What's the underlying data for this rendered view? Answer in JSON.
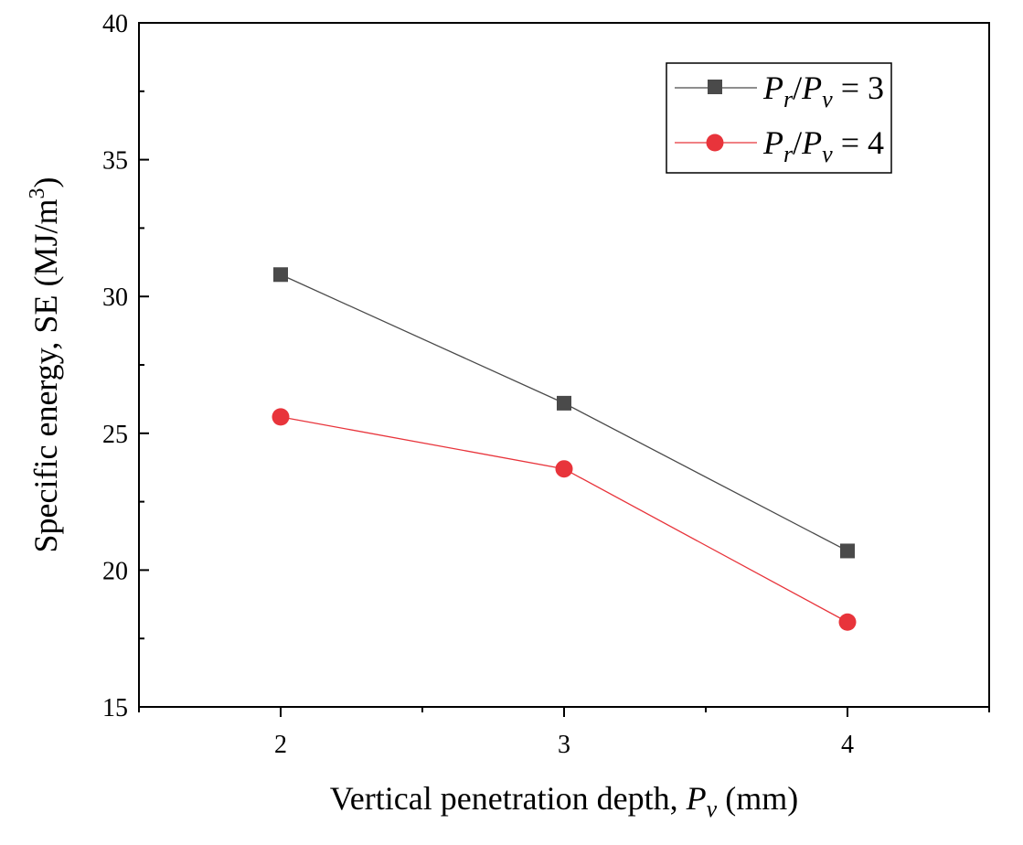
{
  "chart_data": {
    "type": "line",
    "title": "",
    "xlabel": {
      "prefix": "Vertical penetration depth, ",
      "var": "P",
      "sub": "v",
      "suffix": " (mm)"
    },
    "ylabel": {
      "text": "Specific energy, SE (MJ/m",
      "sup": "3",
      "close": ")"
    },
    "x": [
      2,
      3,
      4
    ],
    "xlim": [
      1.5,
      4.5
    ],
    "ylim": [
      15,
      40
    ],
    "xticks": [
      "2",
      "3",
      "4"
    ],
    "yticks": [
      "15",
      "20",
      "25",
      "30",
      "35",
      "40"
    ],
    "grid": false,
    "legend_position": "top-right",
    "series": [
      {
        "name": "Pr/Pv = 3",
        "legend": {
          "a": "P",
          "a_sub": "r",
          "slash": "/",
          "b": "P",
          "b_sub": "v",
          "rest": " = 3"
        },
        "values": [
          30.8,
          26.1,
          20.7
        ],
        "color": "#4a4a4a",
        "marker": "square"
      },
      {
        "name": "Pr/Pv = 4",
        "legend": {
          "a": "P",
          "a_sub": "r",
          "slash": "/",
          "b": "P",
          "b_sub": "v",
          "rest": " = 4"
        },
        "values": [
          25.6,
          23.7,
          18.1
        ],
        "color": "#e8343b",
        "marker": "circle"
      }
    ]
  }
}
